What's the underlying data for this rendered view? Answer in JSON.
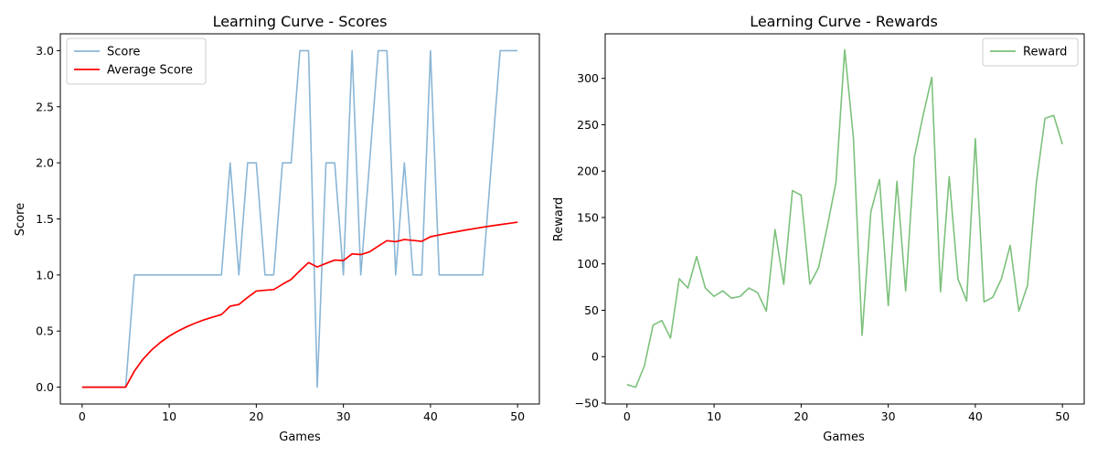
{
  "chart_data": [
    {
      "type": "line",
      "title": "Learning Curve - Scores",
      "xlabel": "Games",
      "ylabel": "Score",
      "xlim": [
        -2.5,
        52.5
      ],
      "ylim": [
        -0.15,
        3.15
      ],
      "xticks": [
        0,
        10,
        20,
        30,
        40,
        50
      ],
      "xtick_labels": [
        "0",
        "10",
        "20",
        "30",
        "40",
        "50"
      ],
      "yticks": [
        0,
        0.5,
        1,
        1.5,
        2,
        2.5,
        3
      ],
      "ytick_labels": [
        "0.0",
        "0.5",
        "1.0",
        "1.5",
        "2.0",
        "2.5",
        "3.0"
      ],
      "grid": false,
      "legend_position": "top-left",
      "x": [
        0,
        1,
        2,
        3,
        4,
        5,
        6,
        7,
        8,
        9,
        10,
        11,
        12,
        13,
        14,
        15,
        16,
        17,
        18,
        19,
        20,
        21,
        22,
        23,
        24,
        25,
        26,
        27,
        28,
        29,
        30,
        31,
        32,
        33,
        34,
        35,
        36,
        37,
        38,
        39,
        40,
        41,
        42,
        43,
        44,
        45,
        46,
        47,
        48,
        49,
        50
      ],
      "series": [
        {
          "name": "Score",
          "color": "#8ab6d6",
          "values": [
            0,
            0,
            0,
            0,
            0,
            0,
            1,
            1,
            1,
            1,
            1,
            1,
            1,
            1,
            1,
            1,
            1,
            2,
            1,
            2,
            2,
            1,
            1,
            2,
            2,
            3,
            3,
            0,
            2,
            2,
            1,
            3,
            1,
            2,
            3,
            3,
            1,
            2,
            1,
            1,
            3,
            1,
            1,
            1,
            1,
            1,
            1,
            2,
            3,
            3,
            3
          ]
        },
        {
          "name": "Average Score",
          "color": "#ff0000",
          "values": [
            0,
            0,
            0,
            0,
            0,
            0,
            0.143,
            0.25,
            0.333,
            0.4,
            0.455,
            0.5,
            0.538,
            0.571,
            0.6,
            0.625,
            0.647,
            0.722,
            0.737,
            0.8,
            0.857,
            0.864,
            0.87,
            0.917,
            0.96,
            1.038,
            1.111,
            1.071,
            1.103,
            1.133,
            1.129,
            1.188,
            1.182,
            1.206,
            1.257,
            1.306,
            1.297,
            1.316,
            1.308,
            1.3,
            1.341,
            1.357,
            1.372,
            1.386,
            1.4,
            1.413,
            1.426,
            1.438,
            1.449,
            1.46,
            1.471
          ]
        }
      ]
    },
    {
      "type": "line",
      "title": "Learning Curve - Rewards",
      "xlabel": "Games",
      "ylabel": "Reward",
      "xlim": [
        -2.5,
        52.5
      ],
      "ylim": [
        -51,
        348
      ],
      "xticks": [
        0,
        10,
        20,
        30,
        40,
        50
      ],
      "xtick_labels": [
        "0",
        "10",
        "20",
        "30",
        "40",
        "50"
      ],
      "yticks": [
        -50,
        0,
        50,
        100,
        150,
        200,
        250,
        300
      ],
      "ytick_labels": [
        "−50",
        "0",
        "50",
        "100",
        "150",
        "200",
        "250",
        "300"
      ],
      "grid": false,
      "legend_position": "top-right",
      "x": [
        0,
        1,
        2,
        3,
        4,
        5,
        6,
        7,
        8,
        9,
        10,
        11,
        12,
        13,
        14,
        15,
        16,
        17,
        18,
        19,
        20,
        21,
        22,
        23,
        24,
        25,
        26,
        27,
        28,
        29,
        30,
        31,
        32,
        33,
        34,
        35,
        36,
        37,
        38,
        39,
        40,
        41,
        42,
        43,
        44,
        45,
        46,
        47,
        48,
        49,
        50
      ],
      "series": [
        {
          "name": "Reward",
          "color": "#7cc17c",
          "values": [
            -30,
            -33,
            -10,
            34,
            39,
            20,
            84,
            74,
            108,
            74,
            65,
            71,
            63,
            65,
            74,
            69,
            49,
            137,
            78,
            179,
            174,
            78,
            96,
            140,
            188,
            331,
            236,
            23,
            156,
            191,
            55,
            189,
            71,
            215,
            260,
            301,
            70,
            194,
            84,
            60,
            235,
            59,
            64,
            84,
            120,
            49,
            77,
            187,
            257,
            260,
            229
          ]
        }
      ]
    }
  ]
}
